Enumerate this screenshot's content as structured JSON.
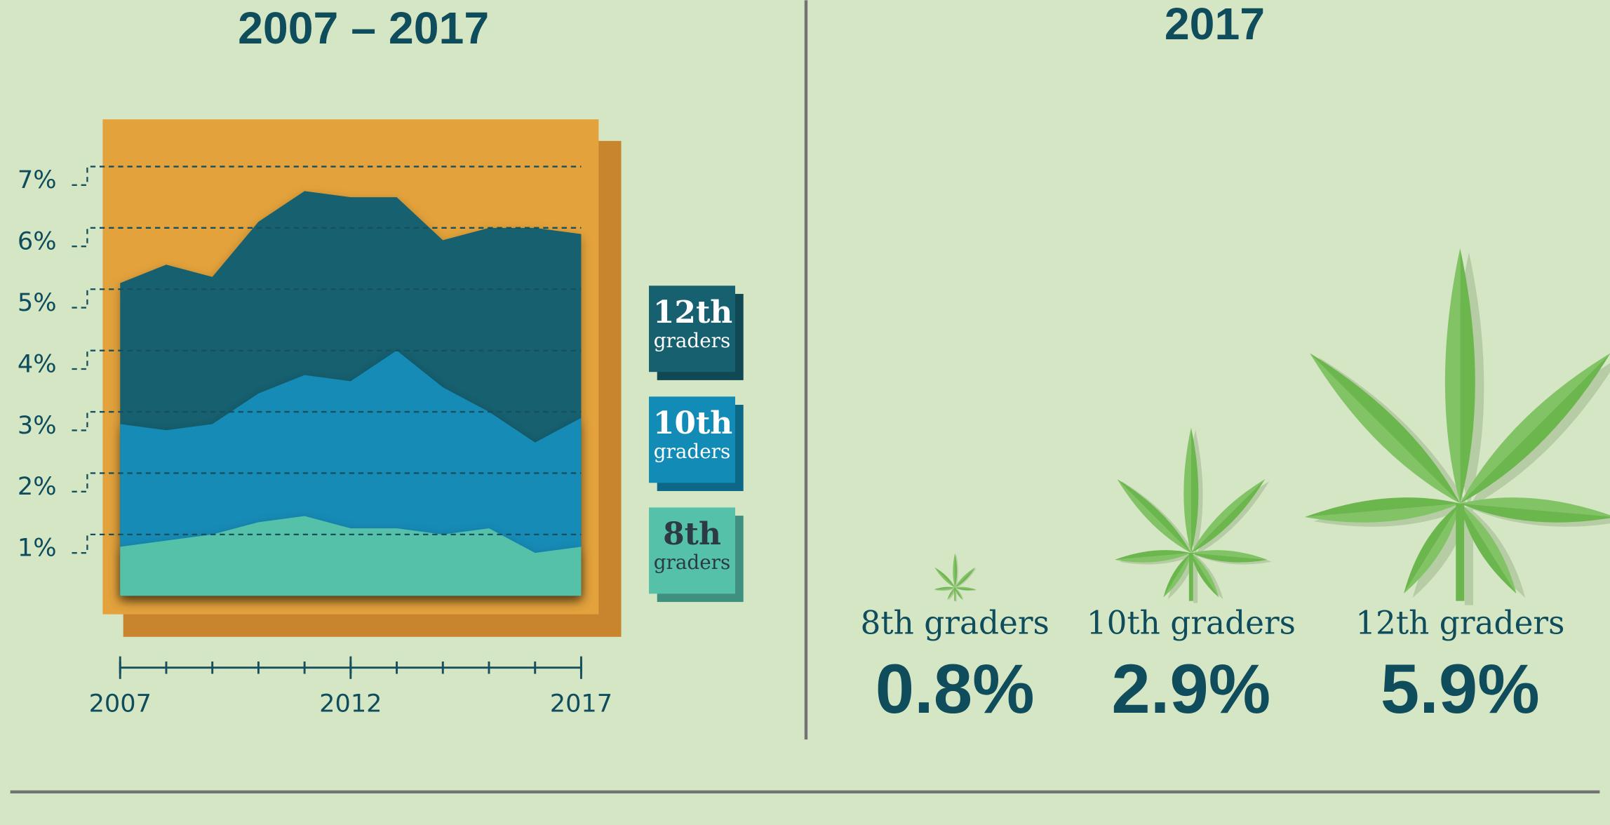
{
  "chart_data": [
    {
      "type": "area",
      "title": "2007 – 2017",
      "x": [
        2007,
        2008,
        2009,
        2010,
        2011,
        2012,
        2013,
        2014,
        2015,
        2016,
        2017
      ],
      "series": [
        {
          "name": "12th graders",
          "color": "#16606f",
          "values": [
            5.1,
            5.4,
            5.2,
            6.1,
            6.6,
            6.5,
            6.5,
            5.8,
            6.0,
            6.0,
            5.9
          ]
        },
        {
          "name": "10th graders",
          "color": "#128bb6",
          "values": [
            2.8,
            2.7,
            2.8,
            3.3,
            3.6,
            3.5,
            4.0,
            3.4,
            3.0,
            2.5,
            2.9
          ]
        },
        {
          "name": "8th graders",
          "color": "#55c1a9",
          "values": [
            0.8,
            0.9,
            1.0,
            1.2,
            1.3,
            1.1,
            1.1,
            1.0,
            1.1,
            0.7,
            0.8
          ]
        }
      ],
      "xlim": [
        2007,
        2017
      ],
      "xticks": [
        2007,
        2012,
        2017
      ],
      "ylim": [
        0,
        7
      ],
      "yticks": [
        {
          "value": 1,
          "label": "1%"
        },
        {
          "value": 2,
          "label": "2%"
        },
        {
          "value": 3,
          "label": "3%"
        },
        {
          "value": 4,
          "label": "4%"
        },
        {
          "value": 5,
          "label": "5%"
        },
        {
          "value": 6,
          "label": "6%"
        },
        {
          "value": 7,
          "label": "7%"
        }
      ],
      "grid": true
    },
    {
      "type": "pictogram",
      "title": "2017",
      "color": "#6cb64e",
      "categories": [
        "8th graders",
        "10th graders",
        "12th graders"
      ],
      "values": [
        0.8,
        2.9,
        5.9
      ],
      "value_labels": [
        "0.8%",
        "2.9%",
        "5.9%"
      ]
    }
  ]
}
